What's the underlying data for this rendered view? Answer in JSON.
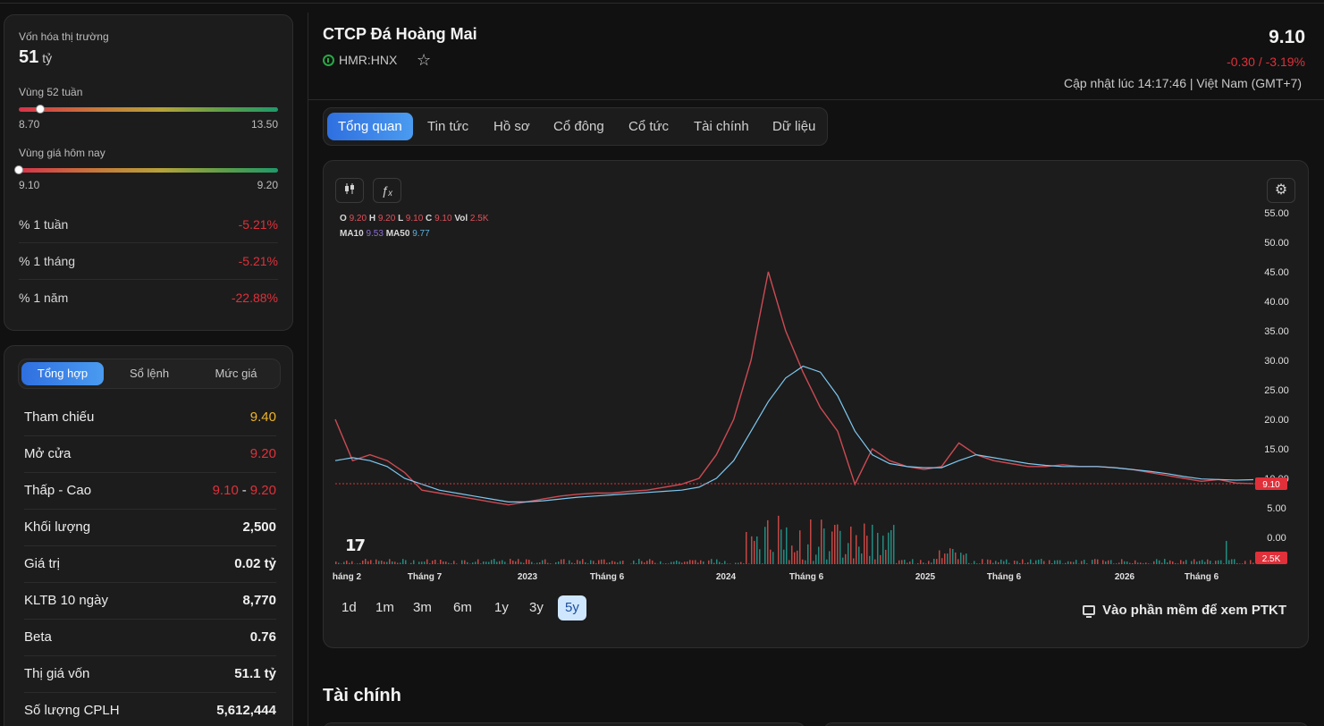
{
  "overview": {
    "market_cap_label": "Vốn hóa thị trường",
    "market_cap_value": "51",
    "market_cap_unit": "tỷ",
    "week52_label": "Vùng 52 tuần",
    "week52_low": "8.70",
    "week52_high": "13.50",
    "week52_position": 0.083,
    "today_label": "Vùng giá hôm nay",
    "today_low": "9.10",
    "today_high": "9.20",
    "today_position": 0.0,
    "changes": [
      {
        "label": "% 1 tuần",
        "value": "-5.21%"
      },
      {
        "label": "% 1 tháng",
        "value": "-5.21%"
      },
      {
        "label": "% 1 năm",
        "value": "-22.88%"
      }
    ]
  },
  "trading": {
    "tabs": [
      "Tổng hợp",
      "Sổ lệnh",
      "Mức giá"
    ],
    "rows": [
      {
        "label": "Tham chiếu",
        "value": "9.40"
      },
      {
        "label": "Mở cửa",
        "value": "9.20"
      },
      {
        "label": "Thấp - Cao",
        "low": "9.10",
        "sep": "-",
        "high": "9.20"
      },
      {
        "label": "Khối lượng",
        "value": "2,500"
      },
      {
        "label": "Giá trị",
        "value": "0.02 tỷ"
      },
      {
        "label": "KLTB 10 ngày",
        "value": "8,770"
      },
      {
        "label": "Beta",
        "value": "0.76"
      },
      {
        "label": "Thị giá vốn",
        "value": "51.1 tỷ"
      },
      {
        "label": "Số lượng CPLH",
        "value": "5,612,444"
      }
    ]
  },
  "header": {
    "company": "CTCP Đá Hoàng Mai",
    "ticker": "HMR:HNX",
    "price": "9.10",
    "change": "-0.30 / -3.19%",
    "updated": "Cập nhật lúc 14:17:46 | Việt Nam (GMT+7)"
  },
  "tabs": [
    "Tổng quan",
    "Tin tức",
    "Hồ sơ",
    "Cổ đông",
    "Cổ tức",
    "Tài chính",
    "Dữ liệu"
  ],
  "chart": {
    "legend1": {
      "o_label": "O",
      "o": "9.20",
      "h_label": "H",
      "h": "9.20",
      "l_label": "L",
      "l": "9.10",
      "c_label": "C",
      "c": "9.10",
      "vol_label": "Vol",
      "vol": "2.5K"
    },
    "legend2": {
      "ma10_label": "MA10",
      "ma10": "9.53",
      "ma50_label": "MA50",
      "ma50": "9.77"
    },
    "tv_logo": "17",
    "price_tag": "9.10",
    "vol_tag": "2.5K",
    "ranges": [
      "1d",
      "1m",
      "3m",
      "6m",
      "1y",
      "3y",
      "5y"
    ],
    "active_range": "5y",
    "ta_link": "Vào phần mềm để xem PTKT"
  },
  "chart_data": {
    "type": "line",
    "y_ticks": [
      "55.00",
      "50.00",
      "45.00",
      "40.00",
      "35.00",
      "30.00",
      "25.00",
      "20.00",
      "15.00",
      "10.00",
      "5.00",
      "0.00"
    ],
    "ylim": [
      0,
      55
    ],
    "x_ticks": [
      "háng 2",
      "Tháng 7",
      "2023",
      "Tháng 6",
      "2024",
      "Tháng 6",
      "2025",
      "Tháng 6",
      "2026",
      "Tháng 6"
    ],
    "series": [
      {
        "values": [
          20,
          13,
          14,
          13,
          11,
          8,
          7.5,
          7,
          6.5,
          6,
          5.5,
          6,
          6.5,
          7,
          7.3,
          7.5,
          7.5,
          7.8,
          8,
          8.5,
          9,
          10,
          14,
          20,
          30,
          45,
          35,
          28,
          22,
          18,
          9,
          15,
          13,
          12,
          11.5,
          12,
          16,
          14,
          13,
          12.5,
          12,
          12,
          12.3,
          12,
          12,
          11.8,
          11.5,
          11,
          10.5,
          10,
          9.5,
          9.8,
          9.2,
          9.1
        ]
      },
      {
        "values": [
          13,
          13.5,
          13,
          12,
          10,
          9,
          8,
          7.5,
          7,
          6.5,
          6,
          6,
          6.2,
          6.5,
          6.8,
          7,
          7.2,
          7.4,
          7.6,
          7.8,
          8,
          8.5,
          10,
          13,
          18,
          23,
          27,
          29,
          28,
          24,
          18,
          14,
          12.5,
          12,
          11.8,
          11.8,
          13,
          14,
          13.5,
          13,
          12.5,
          12.2,
          12,
          12,
          12,
          11.8,
          11.5,
          11.2,
          10.8,
          10.3,
          9.9,
          9.8,
          9.7,
          9.77
        ]
      }
    ]
  }
}
